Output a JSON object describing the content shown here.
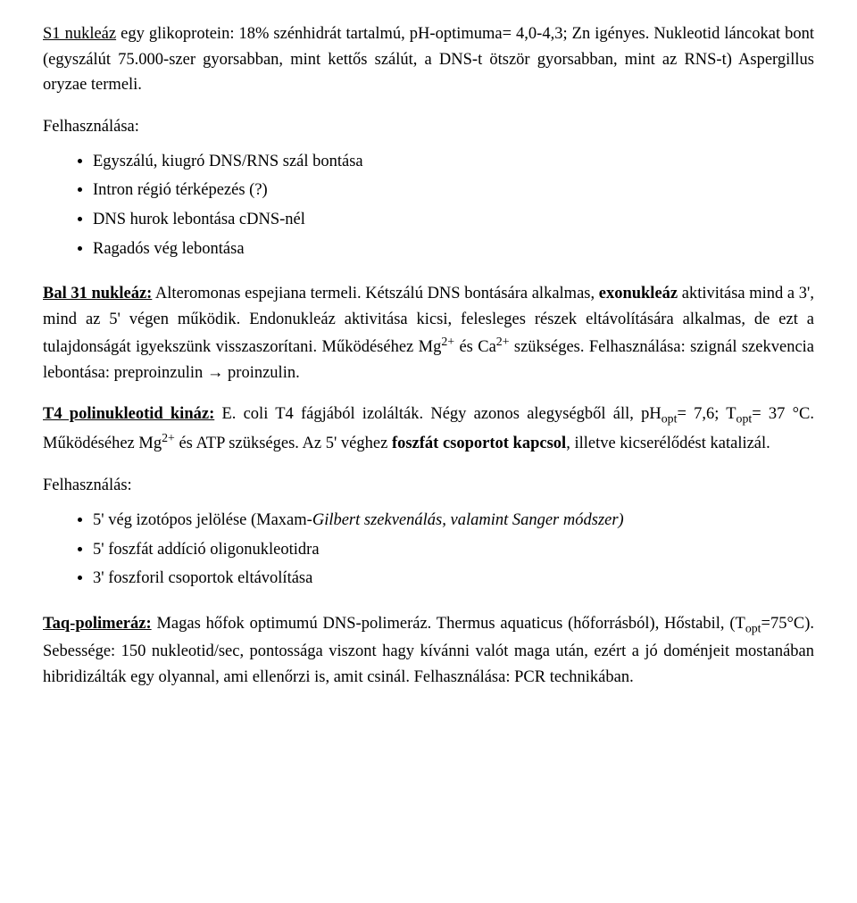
{
  "p1_a": "S1 nukleáz",
  "p1_b": " egy glikoprotein: 18% szénhidrát tartalmú, pH-optimuma= 4,0-4,3; Zn igényes. Nukleotid láncokat bont (egyszálút 75.000-szer gyorsabban, mint kettős szálút, a DNS-t ötször gyorsabban, mint az RNS-t) Aspergillus oryzae termeli.",
  "felh1": "Felhasználása:",
  "list1": {
    "i0": "Egyszálú, kiugró DNS/RNS szál bontása",
    "i1": "Intron régió térképezés (?)",
    "i2": "DNS hurok lebontása cDNS-nél",
    "i3": "Ragadós vég lebontása"
  },
  "p2_a": "Bal 31 nukleáz:",
  "p2_b": " Alteromonas espejiana termeli. Kétszálú DNS bontására alkalmas, ",
  "p2_c": "exonukleáz",
  "p2_d": " aktivitása mind a 3', mind az 5' végen működik. Endonukleáz aktivitása kicsi, felesleges részek eltávolítására alkalmas, de ezt a tulajdonságát igyekszünk visszaszorítani. Működéséhez Mg",
  "p2_e": " és Ca",
  "p2_f": " szükséges. Felhasználása: szignál szekvencia lebontása: prepro­inzulin ",
  "p2_g": " proinzulin.",
  "p3_a": "T4 polinukleotid kináz:",
  "p3_b": " E. coli T4 fágjából izolálták. Négy azonos alegységből áll, pH",
  "p3_c": "= 7,6; T",
  "p3_d": "= 37 °C. Működéséhez Mg",
  "p3_e": " és ATP szükséges. Az 5' véghez ",
  "p3_f": "foszfát csoportot kapcsol",
  "p3_g": ", illetve kicserélődést katalizál.",
  "felh2": "Felhasználás:",
  "list2": {
    "i0_a": "5' vég izotópos jelölése (Maxam",
    "i0_b": "-Gilbert szekvenálás, valamint Sanger módszer)",
    "i1": "5' foszfát addíció oligonukleotidra",
    "i2": "3' foszforil csoportok eltávolítása"
  },
  "p4_a": "Taq-polimeráz:",
  "p4_b": " Magas hőfok optimumú DNS-polimeráz. Thermus aquaticus (hőforrásból), Hőstabil, (T",
  "p4_c": "=75°C).  Sebessége: 150 nukleotid/sec, pontossága viszont hagy kívánni valót maga után, ezért a jó doménjeit mostanában hibridizálták egy olyannal, ami ellenőrzi is, amit csinál. Felhasználása: PCR technikában.",
  "sub_opt": "opt",
  "sup_2p": "2+",
  "arrow": "→"
}
